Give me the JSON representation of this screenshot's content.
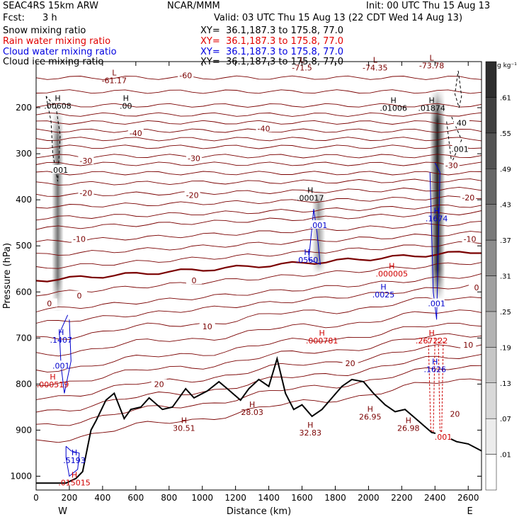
{
  "header": {
    "model": "SEAC4RS 15km ARW",
    "org": "NCAR/MMM",
    "init": "Init: 00 UTC Thu 15 Aug 13",
    "fcst_label": "Fcst:",
    "fcst_value": "3 h",
    "valid": "Valid: 03 UTC Thu 15 Aug 13 (22 CDT Wed 14 Aug 13)"
  },
  "fields": [
    {
      "name": "Snow mixing ratio",
      "xy": "XY=  36.1,187.3 to 175.8, 77.0",
      "color": "#000000"
    },
    {
      "name": "Rain water mixing ratio",
      "xy": "XY=  36.1,187.3 to 175.8, 77.0",
      "color": "#e00000"
    },
    {
      "name": "Cloud water mixing ratio",
      "xy": "XY=  36.1,187.3 to 175.8, 77.0",
      "color": "#0000e0"
    },
    {
      "name": "Cloud ice mixing ratio",
      "xy": "XY=  36.1,187.3 to 175.8, 77.0",
      "color": "#000000"
    }
  ],
  "chart_data": {
    "type": "cross-section",
    "xlabel": "Distance (km)",
    "ylabel": "Pressure (hPa)",
    "xlim": [
      0,
      2680
    ],
    "ylim": [
      1030,
      100
    ],
    "y_reversed": true,
    "x_ticks": [
      "0",
      "200",
      "400",
      "600",
      "800",
      "1000",
      "1200",
      "1400",
      "1600",
      "1800",
      "2000",
      "2200",
      "2400",
      "2600"
    ],
    "y_ticks": [
      "200",
      "300",
      "400",
      "500",
      "600",
      "700",
      "800",
      "900",
      "1000"
    ],
    "endpoints": {
      "left": "W",
      "right": "E"
    },
    "colorbar": {
      "unit": "g kg⁻¹",
      "levels": [
        ".01",
        ".07",
        ".13",
        ".19",
        ".25",
        ".31",
        ".37",
        ".43",
        ".49",
        ".55",
        ".61"
      ]
    },
    "temperature_contour_labels": [
      "-60",
      "-40",
      "-30",
      "-20",
      "-10",
      "0",
      "10",
      "20"
    ],
    "terrain_km_hpa": [
      [
        0,
        1015
      ],
      [
        180,
        1015
      ],
      [
        240,
        1005
      ],
      [
        280,
        990
      ],
      [
        330,
        900
      ],
      [
        360,
        880
      ],
      [
        420,
        835
      ],
      [
        470,
        820
      ],
      [
        530,
        875
      ],
      [
        570,
        855
      ],
      [
        630,
        850
      ],
      [
        680,
        830
      ],
      [
        760,
        855
      ],
      [
        820,
        850
      ],
      [
        900,
        810
      ],
      [
        950,
        830
      ],
      [
        1030,
        815
      ],
      [
        1100,
        795
      ],
      [
        1150,
        810
      ],
      [
        1230,
        835
      ],
      [
        1280,
        810
      ],
      [
        1340,
        790
      ],
      [
        1400,
        805
      ],
      [
        1450,
        745
      ],
      [
        1500,
        820
      ],
      [
        1550,
        855
      ],
      [
        1600,
        845
      ],
      [
        1660,
        870
      ],
      [
        1720,
        855
      ],
      [
        1780,
        830
      ],
      [
        1840,
        805
      ],
      [
        1900,
        790
      ],
      [
        1970,
        795
      ],
      [
        2030,
        820
      ],
      [
        2100,
        845
      ],
      [
        2160,
        860
      ],
      [
        2220,
        855
      ],
      [
        2300,
        880
      ],
      [
        2380,
        905
      ],
      [
        2440,
        910
      ],
      [
        2530,
        925
      ],
      [
        2600,
        930
      ],
      [
        2680,
        945
      ]
    ],
    "annotations": [
      {
        "label": "H",
        "value": ".00608",
        "x": 130,
        "p": 185,
        "field": "snow"
      },
      {
        "label": "H",
        "value": ".00",
        "x": 540,
        "p": 185,
        "field": "snow"
      },
      {
        "label": "L",
        "value": "-61.17",
        "x": 470,
        "p": 130,
        "field": "temperature"
      },
      {
        "label": "L",
        "value": "-71.5",
        "x": 1600,
        "p": 102,
        "field": "temperature"
      },
      {
        "label": "L",
        "value": "-74.35",
        "x": 2040,
        "p": 102,
        "field": "temperature"
      },
      {
        "label": "L",
        "value": "-73.78",
        "x": 2380,
        "p": 98,
        "field": "temperature"
      },
      {
        "label": "H",
        "value": ".01006",
        "x": 2150,
        "p": 190,
        "field": "snow"
      },
      {
        "label": "H",
        "value": ".01874",
        "x": 2380,
        "p": 190,
        "field": "snow"
      },
      {
        "label": "H",
        "value": ".00017",
        "x": 1650,
        "p": 385,
        "field": "snow"
      },
      {
        "label": "H",
        "value": ".0560",
        "x": 1630,
        "p": 520,
        "field": "cloud"
      },
      {
        "label": "H",
        "value": ".1674",
        "x": 2410,
        "p": 430,
        "field": "cloud"
      },
      {
        "label": "H",
        "value": ".000005",
        "x": 2140,
        "p": 550,
        "field": "rain"
      },
      {
        "label": "H",
        "value": ".0025",
        "x": 2090,
        "p": 595,
        "field": "cloud"
      },
      {
        "label": "H",
        "value": ".000781",
        "x": 1720,
        "p": 695,
        "field": "rain"
      },
      {
        "label": "H",
        "value": ".267222",
        "x": 2380,
        "p": 695,
        "field": "rain"
      },
      {
        "label": "H",
        "value": ".1626",
        "x": 2400,
        "p": 757,
        "field": "cloud"
      },
      {
        "label": "H",
        "value": ".1407",
        "x": 150,
        "p": 693,
        "field": "cloud"
      },
      {
        "label": "H",
        "value": ".000519",
        "x": 100,
        "p": 790,
        "field": "rain"
      },
      {
        "label": "H",
        "value": "28.03",
        "x": 1300,
        "p": 850,
        "field": "temperature"
      },
      {
        "label": "H",
        "value": "30.51",
        "x": 890,
        "p": 885,
        "field": "temperature"
      },
      {
        "label": "H",
        "value": "32.83",
        "x": 1650,
        "p": 895,
        "field": "temperature"
      },
      {
        "label": "H",
        "value": "26.95",
        "x": 2010,
        "p": 860,
        "field": "temperature"
      },
      {
        "label": "H",
        "value": "26.98",
        "x": 2240,
        "p": 885,
        "field": "temperature"
      },
      {
        "label": "H",
        "value": ".5193",
        "x": 230,
        "p": 955,
        "field": "cloud"
      },
      {
        "label": "H",
        "value": ".015015",
        "x": 230,
        "p": 1003,
        "field": "rain"
      }
    ],
    "contour_labels": [
      {
        "value": "-60",
        "x": 900,
        "p": 130,
        "field": "temperature"
      },
      {
        "value": "-40",
        "x": 600,
        "p": 255,
        "field": "temperature"
      },
      {
        "value": "-40",
        "x": 1370,
        "p": 245,
        "field": "temperature"
      },
      {
        "value": "40",
        "x": 2560,
        "p": 233,
        "field": "snow"
      },
      {
        "value": "-30",
        "x": 300,
        "p": 315,
        "field": "temperature"
      },
      {
        "value": "-30",
        "x": 950,
        "p": 310,
        "field": "temperature"
      },
      {
        "value": "-30",
        "x": 2500,
        "p": 325,
        "field": "temperature"
      },
      {
        "value": "-20",
        "x": 300,
        "p": 385,
        "field": "temperature"
      },
      {
        "value": "-20",
        "x": 940,
        "p": 390,
        "field": "temperature"
      },
      {
        "value": "-20",
        "x": 2600,
        "p": 395,
        "field": "temperature"
      },
      {
        "value": "-10",
        "x": 260,
        "p": 485,
        "field": "temperature"
      },
      {
        "value": "-10",
        "x": 2610,
        "p": 485,
        "field": "temperature"
      },
      {
        "value": "0",
        "x": 260,
        "p": 608,
        "field": "temperature"
      },
      {
        "value": "0",
        "x": 80,
        "p": 625,
        "field": "temperature"
      },
      {
        "value": "0",
        "x": 950,
        "p": 575,
        "field": "temperature"
      },
      {
        "value": "0",
        "x": 2650,
        "p": 590,
        "field": "temperature"
      },
      {
        "value": "10",
        "x": 1030,
        "p": 675,
        "field": "temperature"
      },
      {
        "value": "10",
        "x": 2600,
        "p": 715,
        "field": "temperature"
      },
      {
        "value": "20",
        "x": 740,
        "p": 800,
        "field": "temperature"
      },
      {
        "value": "20",
        "x": 1890,
        "p": 755,
        "field": "temperature"
      },
      {
        "value": "20",
        "x": 2520,
        "p": 865,
        "field": "temperature"
      },
      {
        "value": ".001",
        "x": 140,
        "p": 335,
        "field": "snow"
      },
      {
        "value": ".001",
        "x": 2550,
        "p": 290,
        "field": "ice"
      },
      {
        "value": ".001",
        "x": 1700,
        "p": 455,
        "field": "cloud"
      },
      {
        "value": ".001",
        "x": 2410,
        "p": 625,
        "field": "cloud"
      },
      {
        "value": ".001",
        "x": 150,
        "p": 760,
        "field": "cloud"
      },
      {
        "value": ".001",
        "x": 2450,
        "p": 915,
        "field": "rain"
      }
    ]
  }
}
